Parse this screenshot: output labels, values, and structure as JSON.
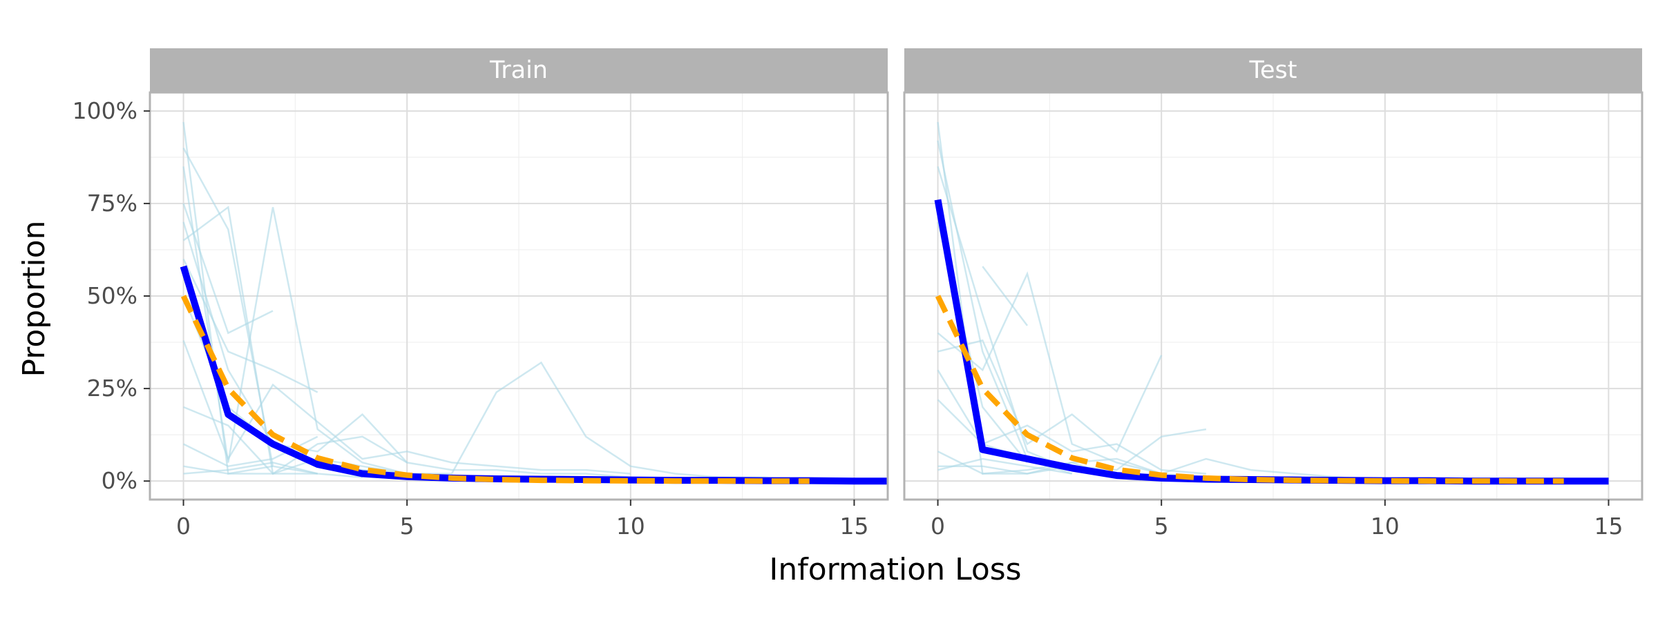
{
  "chart_data": {
    "type": "line",
    "xlabel": "Information Loss",
    "ylabel": "Proportion",
    "xlim": [
      -0.75,
      15.75
    ],
    "ylim": [
      -0.05,
      1.05
    ],
    "x_ticks": [
      0,
      5,
      10,
      15
    ],
    "x_tick_labels": [
      "0",
      "5",
      "10",
      "15"
    ],
    "y_ticks": [
      0,
      0.25,
      0.5,
      0.75,
      1.0
    ],
    "y_tick_labels": [
      "0%",
      "25%",
      "50%",
      "75%",
      "100%"
    ],
    "colors": {
      "mean_line": "#0000ff",
      "reference_line": "#ffa500",
      "individual_lines": "#add8e6",
      "strip_background": "#b3b3b3",
      "panel_border": "#b3b3b3",
      "grid_major": "#dddddd",
      "grid_minor": "#efefef"
    },
    "panels": [
      {
        "label": "Train",
        "mean": {
          "x": [
            0,
            1,
            2,
            3,
            4,
            5,
            6,
            7,
            8,
            9,
            10,
            11,
            12,
            13,
            14,
            15,
            15.75
          ],
          "y": [
            0.58,
            0.18,
            0.1,
            0.045,
            0.02,
            0.012,
            0.008,
            0.006,
            0.005,
            0.004,
            0.003,
            0.002,
            0.002,
            0.001,
            0.001,
            0.0,
            0.0
          ]
        },
        "reference": {
          "x": [
            0,
            1,
            2,
            3,
            4,
            5,
            6,
            7,
            8,
            9,
            10,
            11,
            12,
            13,
            14
          ],
          "y": [
            0.5,
            0.25,
            0.125,
            0.0625,
            0.031,
            0.016,
            0.008,
            0.004,
            0.002,
            0.001,
            0.0005,
            0.0002,
            0.0001,
            0.0,
            0.0
          ]
        },
        "individual": [
          {
            "x": [
              0,
              1,
              2,
              3,
              4,
              5,
              6
            ],
            "y": [
              0.97,
              0.02,
              0.02,
              0.06,
              0.04,
              0.02,
              0.01
            ]
          },
          {
            "x": [
              0,
              1,
              2,
              3
            ],
            "y": [
              0.9,
              0.68,
              0.04,
              0.02
            ]
          },
          {
            "x": [
              0,
              1,
              2,
              3,
              4,
              5,
              6
            ],
            "y": [
              0.85,
              0.05,
              0.74,
              0.14,
              0.05,
              0.02,
              0.01
            ]
          },
          {
            "x": [
              0,
              1,
              2
            ],
            "y": [
              0.75,
              0.4,
              0.46
            ]
          },
          {
            "x": [
              0,
              1,
              2,
              3,
              4,
              5,
              6,
              7,
              8,
              9,
              10,
              11,
              12,
              13,
              14
            ],
            "y": [
              0.7,
              0.3,
              0.1,
              0.05,
              0.03,
              0.02,
              0.02,
              0.24,
              0.32,
              0.12,
              0.04,
              0.02,
              0.01,
              0.01,
              0.0
            ]
          },
          {
            "x": [
              0,
              1,
              2,
              3
            ],
            "y": [
              0.65,
              0.74,
              0.02,
              0.02
            ]
          },
          {
            "x": [
              0,
              1,
              2,
              3
            ],
            "y": [
              0.6,
              0.35,
              0.3,
              0.24
            ]
          },
          {
            "x": [
              0,
              1,
              2,
              3,
              4,
              5,
              6,
              7,
              8,
              9,
              10
            ],
            "y": [
              0.5,
              0.2,
              0.1,
              0.08,
              0.18,
              0.05,
              0.03,
              0.03,
              0.02,
              0.02,
              0.01
            ]
          },
          {
            "x": [
              0,
              1,
              2,
              3,
              4,
              5,
              6,
              7,
              8,
              9,
              10
            ],
            "y": [
              0.38,
              0.06,
              0.26,
              0.16,
              0.06,
              0.08,
              0.05,
              0.04,
              0.03,
              0.03,
              0.02
            ]
          },
          {
            "x": [
              0,
              1,
              2,
              3,
              4,
              5
            ],
            "y": [
              0.2,
              0.15,
              0.02,
              0.1,
              0.12,
              0.05
            ]
          },
          {
            "x": [
              0,
              1,
              2,
              3
            ],
            "y": [
              0.1,
              0.04,
              0.06,
              0.12
            ]
          },
          {
            "x": [
              0,
              1,
              2
            ],
            "y": [
              0.04,
              0.02,
              0.04
            ]
          },
          {
            "x": [
              0,
              1,
              2,
              3,
              4
            ],
            "y": [
              0.02,
              0.03,
              0.05,
              0.02,
              0.01
            ]
          }
        ]
      },
      {
        "label": "Test",
        "mean": {
          "x": [
            0,
            1,
            2,
            3,
            4,
            5,
            6,
            7,
            8,
            9,
            10,
            11,
            12,
            13,
            14,
            15
          ],
          "y": [
            0.76,
            0.085,
            0.06,
            0.035,
            0.015,
            0.008,
            0.005,
            0.004,
            0.003,
            0.002,
            0.001,
            0.001,
            0.0,
            0.0,
            0.0,
            0.0
          ]
        },
        "reference": {
          "x": [
            0,
            1,
            2,
            3,
            4,
            5,
            6,
            7,
            8,
            9,
            10,
            11,
            12,
            13,
            14
          ],
          "y": [
            0.5,
            0.25,
            0.125,
            0.0625,
            0.031,
            0.016,
            0.008,
            0.004,
            0.002,
            0.001,
            0.0005,
            0.0002,
            0.0001,
            0.0,
            0.0
          ]
        },
        "individual": [
          {
            "x": [
              0,
              1,
              2,
              3,
              4
            ],
            "y": [
              0.97,
              0.02,
              0.02,
              0.05,
              0.01
            ]
          },
          {
            "x": [
              0,
              1,
              2,
              3
            ],
            "y": [
              0.92,
              0.35,
              0.06,
              0.02
            ]
          },
          {
            "x": [
              0,
              1,
              2,
              3
            ],
            "y": [
              0.85,
              0.45,
              0.08,
              0.03
            ]
          },
          {
            "x": [
              0,
              1,
              2
            ],
            "y": [
              0.7,
              0.2,
              0.05
            ]
          },
          {
            "x": [
              1,
              2
            ],
            "y": [
              0.58,
              0.42
            ]
          },
          {
            "x": [
              0,
              1,
              2,
              3,
              4,
              5,
              6
            ],
            "y": [
              0.4,
              0.3,
              0.56,
              0.1,
              0.05,
              0.02,
              0.01
            ]
          },
          {
            "x": [
              0,
              1,
              2,
              3,
              4,
              5
            ],
            "y": [
              0.35,
              0.38,
              0.1,
              0.18,
              0.08,
              0.34
            ]
          },
          {
            "x": [
              0,
              1,
              2,
              3,
              4,
              5,
              6
            ],
            "y": [
              0.3,
              0.1,
              0.15,
              0.08,
              0.1,
              0.03,
              0.02
            ]
          },
          {
            "x": [
              0,
              1,
              2,
              3,
              4,
              5,
              6
            ],
            "y": [
              0.22,
              0.1,
              0.06,
              0.04,
              0.03,
              0.12,
              0.14
            ]
          },
          {
            "x": [
              0,
              1,
              2,
              3,
              4,
              5,
              6,
              7,
              8,
              9,
              10
            ],
            "y": [
              0.08,
              0.02,
              0.03,
              0.05,
              0.06,
              0.02,
              0.06,
              0.03,
              0.02,
              0.01,
              0.0
            ]
          },
          {
            "x": [
              0,
              1,
              2,
              3
            ],
            "y": [
              0.04,
              0.04,
              0.02,
              0.04
            ]
          },
          {
            "x": [
              0,
              1,
              2,
              3
            ],
            "y": [
              0.03,
              0.06,
              0.04,
              0.02
            ]
          }
        ]
      }
    ]
  }
}
